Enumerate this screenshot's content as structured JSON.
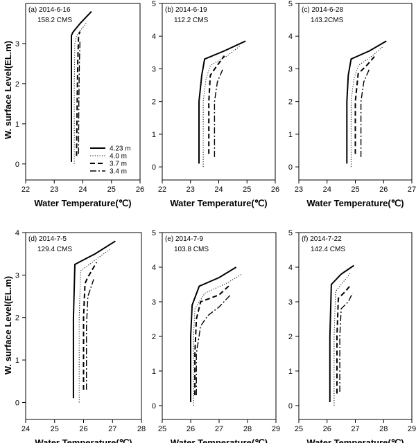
{
  "chart_data": {
    "type": "line",
    "ylabel": "W. surface Level(EL.m)",
    "xlabel": "Water Temperature(℃)",
    "legend": {
      "placement": "inside panel (a), lower-right",
      "entries": [
        {
          "name": "4.23 m",
          "style": "solid",
          "width": 2
        },
        {
          "name": "4.0 m",
          "style": "dotted",
          "width": 1
        },
        {
          "name": "3.7 m",
          "style": "dashed",
          "width": 2
        },
        {
          "name": "3.4 m",
          "style": "dashdot",
          "width": 1.4
        }
      ]
    },
    "panels": [
      {
        "id": "a",
        "date_label": "(a) 2014-6-16",
        "flow_label": "158.2 CMS",
        "xlim": [
          22,
          26
        ],
        "xticks": [
          22,
          23,
          24,
          25,
          26
        ],
        "ylim": [
          -0.4,
          4
        ],
        "yticks": [
          0,
          1,
          2,
          3
        ],
        "show_legend": true,
        "series": [
          {
            "name": "4.23 m",
            "x": [
              23.6,
              23.6,
              23.6,
              23.65,
              23.9,
              24.3
            ],
            "y": [
              0.05,
              2.2,
              3.2,
              3.28,
              3.5,
              3.8
            ]
          },
          {
            "name": "4.0 m",
            "x": [
              23.7,
              23.7,
              23.72,
              23.78,
              24.0,
              24.15
            ],
            "y": [
              0.0,
              2.0,
              3.0,
              3.2,
              3.4,
              3.55
            ]
          },
          {
            "name": "3.7 m",
            "x": [
              23.78,
              23.8,
              23.82,
              23.85,
              23.9
            ],
            "y": [
              0.2,
              1.5,
              2.5,
              3.2,
              3.3
            ]
          },
          {
            "name": "3.4 m",
            "x": [
              23.85,
              23.86,
              23.88,
              23.9
            ],
            "y": [
              0.25,
              1.5,
              2.5,
              3.1
            ]
          }
        ]
      },
      {
        "id": "b",
        "date_label": "(b) 2014-6-19",
        "flow_label": "112.2 CMS",
        "xlim": [
          22,
          26
        ],
        "xticks": [
          22,
          23,
          24,
          25,
          26
        ],
        "ylim": [
          -0.4,
          5
        ],
        "yticks": [
          0,
          1,
          2,
          3,
          4,
          5
        ],
        "show_legend": false,
        "series": [
          {
            "name": "4.23 m",
            "x": [
              23.3,
              23.3,
              23.4,
              23.5,
              24.2,
              24.95
            ],
            "y": [
              0.1,
              2.0,
              2.8,
              3.3,
              3.55,
              3.85
            ]
          },
          {
            "name": "4.0 m",
            "x": [
              23.45,
              23.45,
              23.55,
              23.7,
              24.3,
              24.75
            ],
            "y": [
              0.0,
              2.0,
              2.7,
              3.1,
              3.4,
              3.7
            ]
          },
          {
            "name": "3.7 m",
            "x": [
              23.65,
              23.65,
              23.7,
              23.9,
              24.2
            ],
            "y": [
              0.4,
              2.0,
              2.8,
              3.05,
              3.4
            ]
          },
          {
            "name": "3.4 m",
            "x": [
              23.85,
              23.85,
              23.95,
              24.15
            ],
            "y": [
              0.3,
              2.0,
              2.6,
              3.0
            ]
          }
        ]
      },
      {
        "id": "c",
        "date_label": "(c) 2014-6-28",
        "flow_label": "143.2CMS",
        "xlim": [
          23,
          27
        ],
        "xticks": [
          23,
          24,
          25,
          26,
          27
        ],
        "ylim": [
          -0.4,
          5
        ],
        "yticks": [
          0,
          1,
          2,
          3,
          4,
          5
        ],
        "show_legend": false,
        "series": [
          {
            "name": "4.23 m",
            "x": [
              24.7,
              24.7,
              24.75,
              24.85,
              25.5,
              26.1
            ],
            "y": [
              0.1,
              2.0,
              2.8,
              3.3,
              3.55,
              3.85
            ]
          },
          {
            "name": "4.0 m",
            "x": [
              24.85,
              24.85,
              24.95,
              25.1,
              25.6,
              26.0
            ],
            "y": [
              0.0,
              2.0,
              2.7,
              3.1,
              3.4,
              3.7
            ]
          },
          {
            "name": "3.7 m",
            "x": [
              25.0,
              25.0,
              25.1,
              25.4,
              25.7
            ],
            "y": [
              0.4,
              2.0,
              2.85,
              3.1,
              3.4
            ]
          },
          {
            "name": "3.4 m",
            "x": [
              25.2,
              25.2,
              25.3,
              25.5
            ],
            "y": [
              0.3,
              2.0,
              2.6,
              3.0
            ]
          }
        ]
      },
      {
        "id": "d",
        "date_label": "(d) 2014-7-5",
        "flow_label": "129.4 CMS",
        "xlim": [
          24,
          28
        ],
        "xticks": [
          24,
          25,
          26,
          27,
          28
        ],
        "ylim": [
          -0.4,
          4
        ],
        "yticks": [
          0,
          1,
          2,
          3,
          4
        ],
        "show_legend": false,
        "series": [
          {
            "name": "4.23 m",
            "x": [
              25.65,
              25.65,
              25.7,
              26.4,
              27.1
            ],
            "y": [
              0.1,
              2.0,
              3.25,
              3.5,
              3.8
            ]
          },
          {
            "name": "4.0 m",
            "x": [
              25.85,
              25.85,
              25.9,
              26.4,
              26.9
            ],
            "y": [
              0.0,
              2.0,
              3.1,
              3.35,
              3.6
            ]
          },
          {
            "name": "3.7 m",
            "x": [
              26.0,
              26.0,
              26.05,
              26.15,
              26.45
            ],
            "y": [
              0.3,
              2.0,
              2.8,
              2.95,
              3.3
            ]
          },
          {
            "name": "3.4 m",
            "x": [
              26.1,
              26.1,
              26.15,
              26.35
            ],
            "y": [
              0.3,
              1.8,
              2.5,
              2.9
            ]
          }
        ]
      },
      {
        "id": "e",
        "date_label": "(e) 2014-7-9",
        "flow_label": "103.8 CMS",
        "xlim": [
          25,
          29
        ],
        "xticks": [
          25,
          26,
          27,
          28,
          29
        ],
        "ylim": [
          -0.4,
          5
        ],
        "yticks": [
          0,
          1,
          2,
          3,
          4,
          5
        ],
        "show_legend": false,
        "series": [
          {
            "name": "4.23 m",
            "x": [
              26.0,
              26.0,
              26.05,
              26.3,
              27.0,
              27.6
            ],
            "y": [
              0.1,
              2.0,
              2.9,
              3.45,
              3.7,
              4.0
            ]
          },
          {
            "name": "4.0 m",
            "x": [
              26.1,
              26.1,
              26.15,
              26.5,
              27.3,
              27.8
            ],
            "y": [
              0.0,
              2.0,
              2.8,
              3.25,
              3.55,
              3.8
            ]
          },
          {
            "name": "3.7 m",
            "x": [
              26.15,
              26.15,
              26.2,
              26.35,
              27.0,
              27.4
            ],
            "y": [
              0.3,
              1.5,
              2.5,
              3.0,
              3.2,
              3.5
            ]
          },
          {
            "name": "3.4 m",
            "x": [
              26.2,
              26.2,
              26.35,
              26.6,
              27.0,
              27.4
            ],
            "y": [
              0.3,
              1.5,
              2.3,
              2.6,
              2.85,
              3.2
            ]
          }
        ]
      },
      {
        "id": "f",
        "date_label": "(f) 2014-7-22",
        "flow_label": "142.4 CMS",
        "xlim": [
          25,
          29
        ],
        "xticks": [
          25,
          26,
          27,
          28,
          29
        ],
        "ylim": [
          -0.4,
          5
        ],
        "yticks": [
          0,
          1,
          2,
          3,
          4,
          5
        ],
        "show_legend": false,
        "series": [
          {
            "name": "4.23 m",
            "x": [
              26.1,
              26.1,
              26.15,
              26.5,
              26.95
            ],
            "y": [
              0.1,
              2.0,
              3.5,
              3.8,
              4.05
            ]
          },
          {
            "name": "4.0 m",
            "x": [
              26.25,
              26.25,
              26.3,
              26.6,
              26.85
            ],
            "y": [
              0.0,
              2.0,
              3.3,
              3.6,
              3.85
            ]
          },
          {
            "name": "3.7 m",
            "x": [
              26.35,
              26.35,
              26.4,
              26.65,
              26.85
            ],
            "y": [
              0.35,
              2.0,
              3.1,
              3.3,
              3.5
            ]
          },
          {
            "name": "3.4 m",
            "x": [
              26.45,
              26.45,
              26.5,
              26.75,
              26.9
            ],
            "y": [
              0.4,
              2.0,
              2.8,
              3.0,
              3.25
            ]
          }
        ]
      }
    ]
  }
}
